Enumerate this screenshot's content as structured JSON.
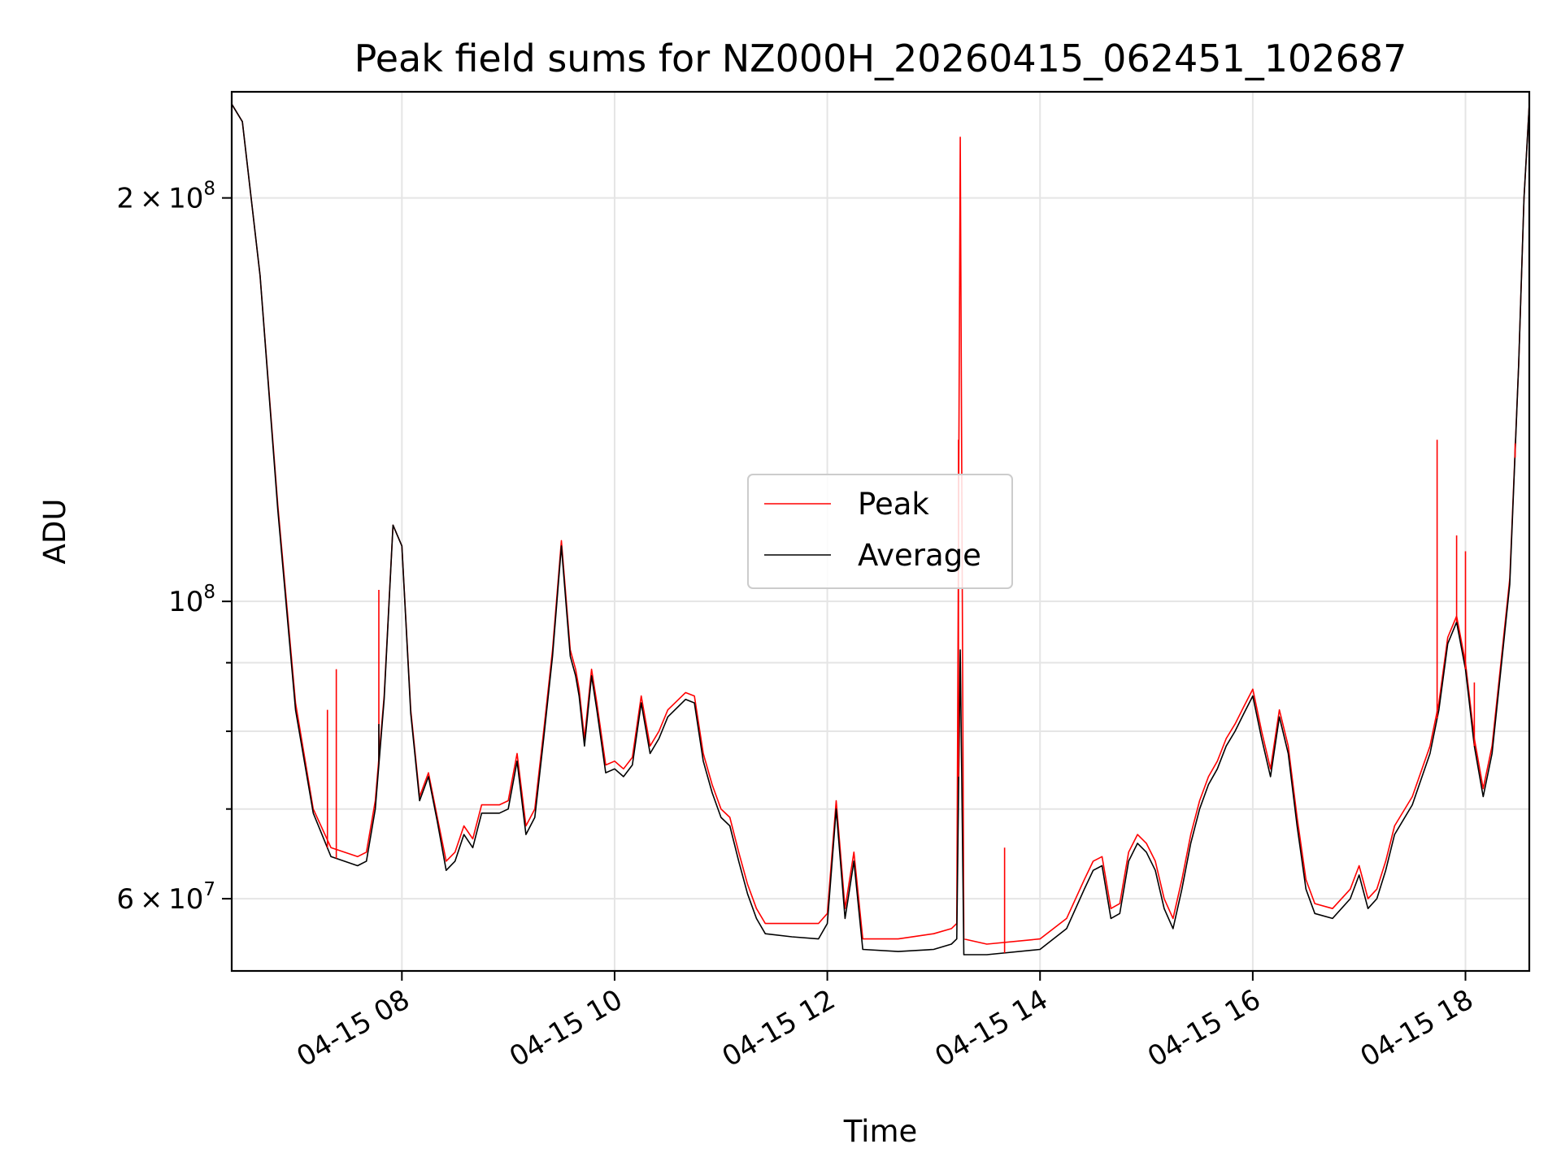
{
  "chart_data": {
    "type": "line",
    "title": "Peak field sums for NZ000H_20260415_062451_102687",
    "xlabel": "Time",
    "ylabel": "ADU",
    "y_scale": "log",
    "x_range": [
      "04-15 06:24",
      "04-15 18:36"
    ],
    "ylim": [
      53000000,
      240000000
    ],
    "grid": true,
    "legend_position": "center",
    "x_ticks": [
      {
        "time": "08:00",
        "label": "04-15 08"
      },
      {
        "time": "10:00",
        "label": "04-15 10"
      },
      {
        "time": "12:00",
        "label": "04-15 12"
      },
      {
        "time": "14:00",
        "label": "04-15 14"
      },
      {
        "time": "16:00",
        "label": "04-15 16"
      },
      {
        "time": "18:00",
        "label": "04-15 18"
      }
    ],
    "y_major_ticks": [
      {
        "value": 60000000,
        "mant": "6",
        "exp": "7"
      },
      {
        "value": 100000000,
        "mant": "",
        "exp": "8"
      },
      {
        "value": 200000000,
        "mant": "2",
        "exp": "8"
      }
    ],
    "y_minor_ticks": [
      70000000,
      80000000,
      90000000
    ],
    "baseline_series": "Average",
    "series": [
      {
        "name": "Peak",
        "color": "#ff0000",
        "points": [
          [
            "06:24",
            235000000.0
          ],
          [
            "06:30",
            228000000.0
          ],
          [
            "06:40",
            175000000.0
          ],
          [
            "06:50",
            118000000.0
          ],
          [
            "07:00",
            84000000.0
          ],
          [
            "07:10",
            70000000.0
          ],
          [
            "07:20",
            65500000.0
          ],
          [
            "07:35",
            64500000.0
          ],
          [
            "07:40",
            65000000.0
          ],
          [
            "07:45",
            71000000.0
          ],
          [
            "07:50",
            85000000.0
          ],
          [
            "07:55",
            114000000.0
          ],
          [
            "08:00",
            110000000.0
          ],
          [
            "08:05",
            83000000.0
          ],
          [
            "08:10",
            71500000.0
          ],
          [
            "08:15",
            74500000.0
          ],
          [
            "08:20",
            69000000.0
          ],
          [
            "08:25",
            64000000.0
          ],
          [
            "08:30",
            65000000.0
          ],
          [
            "08:35",
            68000000.0
          ],
          [
            "08:40",
            66500000.0
          ],
          [
            "08:45",
            70500000.0
          ],
          [
            "08:55",
            70500000.0
          ],
          [
            "09:00",
            71000000.0
          ],
          [
            "09:05",
            77000000.0
          ],
          [
            "09:10",
            68000000.0
          ],
          [
            "09:15",
            70000000.0
          ],
          [
            "09:20",
            80000000.0
          ],
          [
            "09:25",
            92000000.0
          ],
          [
            "09:30",
            111000000.0
          ],
          [
            "09:35",
            92000000.0
          ],
          [
            "09:38",
            89000000.0
          ],
          [
            "09:40",
            86000000.0
          ],
          [
            "09:43",
            79000000.0
          ],
          [
            "09:47",
            89000000.0
          ],
          [
            "09:50",
            84000000.0
          ],
          [
            "09:55",
            75500000.0
          ],
          [
            "10:00",
            76000000.0
          ],
          [
            "10:05",
            75000000.0
          ],
          [
            "10:10",
            76500000.0
          ],
          [
            "10:15",
            85000000.0
          ],
          [
            "10:20",
            78000000.0
          ],
          [
            "10:25",
            80000000.0
          ],
          [
            "10:30",
            83000000.0
          ],
          [
            "10:40",
            85500000.0
          ],
          [
            "10:45",
            85000000.0
          ],
          [
            "10:50",
            77000000.0
          ],
          [
            "10:55",
            73000000.0
          ],
          [
            "11:00",
            70000000.0
          ],
          [
            "11:05",
            69000000.0
          ],
          [
            "11:10",
            65000000.0
          ],
          [
            "11:15",
            61500000.0
          ],
          [
            "11:20",
            59000000.0
          ],
          [
            "11:25",
            57500000.0
          ],
          [
            "11:40",
            57500000.0
          ],
          [
            "11:55",
            57500000.0
          ],
          [
            "12:00",
            58500000.0
          ],
          [
            "12:05",
            71000000.0
          ],
          [
            "12:10",
            59000000.0
          ],
          [
            "12:15",
            65000000.0
          ],
          [
            "12:20",
            56000000.0
          ],
          [
            "12:40",
            56000000.0
          ],
          [
            "13:00",
            56500000.0
          ],
          [
            "13:10",
            57000000.0
          ],
          [
            "13:13",
            57500000.0
          ],
          [
            "13:15",
            222000000.0
          ],
          [
            "13:17",
            56000000.0
          ],
          [
            "13:30",
            55500000.0
          ],
          [
            "14:00",
            56000000.0
          ],
          [
            "14:15",
            58000000.0
          ],
          [
            "14:25",
            62000000.0
          ],
          [
            "14:30",
            64000000.0
          ],
          [
            "14:35",
            64500000.0
          ],
          [
            "14:40",
            59000000.0
          ],
          [
            "14:45",
            59500000.0
          ],
          [
            "14:50",
            65000000.0
          ],
          [
            "14:55",
            67000000.0
          ],
          [
            "15:00",
            66000000.0
          ],
          [
            "15:05",
            64000000.0
          ],
          [
            "15:10",
            60000000.0
          ],
          [
            "15:15",
            58000000.0
          ],
          [
            "15:20",
            62000000.0
          ],
          [
            "15:25",
            67000000.0
          ],
          [
            "15:30",
            71000000.0
          ],
          [
            "15:35",
            74000000.0
          ],
          [
            "15:40",
            76000000.0
          ],
          [
            "15:45",
            79000000.0
          ],
          [
            "15:50",
            81000000.0
          ],
          [
            "15:55",
            83500000.0
          ],
          [
            "16:00",
            86000000.0
          ],
          [
            "16:05",
            80000000.0
          ],
          [
            "16:10",
            75000000.0
          ],
          [
            "16:15",
            83000000.0
          ],
          [
            "16:20",
            78000000.0
          ],
          [
            "16:25",
            69000000.0
          ],
          [
            "16:30",
            62000000.0
          ],
          [
            "16:35",
            59500000.0
          ],
          [
            "16:45",
            59000000.0
          ],
          [
            "16:55",
            61000000.0
          ],
          [
            "17:00",
            63500000.0
          ],
          [
            "17:05",
            60000000.0
          ],
          [
            "17:10",
            61000000.0
          ],
          [
            "17:15",
            64000000.0
          ],
          [
            "17:20",
            68000000.0
          ],
          [
            "17:30",
            71500000.0
          ],
          [
            "17:40",
            78000000.0
          ],
          [
            "17:45",
            84000000.0
          ],
          [
            "17:50",
            94000000.0
          ],
          [
            "17:55",
            97500000.0
          ],
          [
            "18:00",
            90000000.0
          ],
          [
            "18:05",
            79000000.0
          ],
          [
            "18:10",
            72500000.0
          ],
          [
            "18:15",
            78000000.0
          ],
          [
            "18:20",
            90000000.0
          ],
          [
            "18:25",
            104000000.0
          ],
          [
            "18:30",
            150000000.0
          ],
          [
            "18:33",
            200000000.0
          ],
          [
            "18:36",
            235000000.0
          ]
        ]
      },
      {
        "name": "Average",
        "color": "#000000",
        "points": [
          [
            "06:24",
            235000000.0
          ],
          [
            "06:30",
            228000000.0
          ],
          [
            "06:40",
            175000000.0
          ],
          [
            "06:50",
            117000000.0
          ],
          [
            "07:00",
            83000000.0
          ],
          [
            "07:10",
            69500000.0
          ],
          [
            "07:20",
            64500000.0
          ],
          [
            "07:35",
            63500000.0
          ],
          [
            "07:40",
            64000000.0
          ],
          [
            "07:45",
            70000000.0
          ],
          [
            "07:50",
            84500000.0
          ],
          [
            "07:55",
            114000000.0
          ],
          [
            "08:00",
            110000000.0
          ],
          [
            "08:05",
            82500000.0
          ],
          [
            "08:10",
            71000000.0
          ],
          [
            "08:15",
            74000000.0
          ],
          [
            "08:20",
            68500000.0
          ],
          [
            "08:25",
            63000000.0
          ],
          [
            "08:30",
            64000000.0
          ],
          [
            "08:35",
            67000000.0
          ],
          [
            "08:40",
            65500000.0
          ],
          [
            "08:45",
            69500000.0
          ],
          [
            "08:55",
            69500000.0
          ],
          [
            "09:00",
            70000000.0
          ],
          [
            "09:05",
            76000000.0
          ],
          [
            "09:10",
            67000000.0
          ],
          [
            "09:15",
            69000000.0
          ],
          [
            "09:20",
            79000000.0
          ],
          [
            "09:25",
            91000000.0
          ],
          [
            "09:30",
            110000000.0
          ],
          [
            "09:35",
            91000000.0
          ],
          [
            "09:38",
            88000000.0
          ],
          [
            "09:40",
            85000000.0
          ],
          [
            "09:43",
            78000000.0
          ],
          [
            "09:47",
            88000000.0
          ],
          [
            "09:50",
            83000000.0
          ],
          [
            "09:55",
            74500000.0
          ],
          [
            "10:00",
            75000000.0
          ],
          [
            "10:05",
            74000000.0
          ],
          [
            "10:10",
            75500000.0
          ],
          [
            "10:15",
            84000000.0
          ],
          [
            "10:20",
            77000000.0
          ],
          [
            "10:25",
            79000000.0
          ],
          [
            "10:30",
            82000000.0
          ],
          [
            "10:40",
            84500000.0
          ],
          [
            "10:45",
            84000000.0
          ],
          [
            "10:50",
            76000000.0
          ],
          [
            "10:55",
            72000000.0
          ],
          [
            "11:00",
            69000000.0
          ],
          [
            "11:05",
            68000000.0
          ],
          [
            "11:10",
            64000000.0
          ],
          [
            "11:15",
            60500000.0
          ],
          [
            "11:20",
            58000000.0
          ],
          [
            "11:25",
            56500000.0
          ],
          [
            "11:40",
            56200000.0
          ],
          [
            "11:55",
            56000000.0
          ],
          [
            "12:00",
            57500000.0
          ],
          [
            "12:05",
            70000000.0
          ],
          [
            "12:10",
            58000000.0
          ],
          [
            "12:15",
            64000000.0
          ],
          [
            "12:20",
            55000000.0
          ],
          [
            "12:40",
            54800000.0
          ],
          [
            "13:00",
            55000000.0
          ],
          [
            "13:10",
            55500000.0
          ],
          [
            "13:13",
            56000000.0
          ],
          [
            "13:15",
            92000000.0
          ],
          [
            "13:17",
            54500000.0
          ],
          [
            "13:30",
            54500000.0
          ],
          [
            "14:00",
            55000000.0
          ],
          [
            "14:15",
            57000000.0
          ],
          [
            "14:25",
            61000000.0
          ],
          [
            "14:30",
            63000000.0
          ],
          [
            "14:35",
            63500000.0
          ],
          [
            "14:40",
            58000000.0
          ],
          [
            "14:45",
            58500000.0
          ],
          [
            "14:50",
            64000000.0
          ],
          [
            "14:55",
            66000000.0
          ],
          [
            "15:00",
            65000000.0
          ],
          [
            "15:05",
            63000000.0
          ],
          [
            "15:10",
            59000000.0
          ],
          [
            "15:15",
            57000000.0
          ],
          [
            "15:20",
            61000000.0
          ],
          [
            "15:25",
            66000000.0
          ],
          [
            "15:30",
            70000000.0
          ],
          [
            "15:35",
            73000000.0
          ],
          [
            "15:40",
            75000000.0
          ],
          [
            "15:45",
            78000000.0
          ],
          [
            "15:50",
            80000000.0
          ],
          [
            "15:55",
            82500000.0
          ],
          [
            "16:00",
            85000000.0
          ],
          [
            "16:05",
            79000000.0
          ],
          [
            "16:10",
            74000000.0
          ],
          [
            "16:15",
            82000000.0
          ],
          [
            "16:20",
            77000000.0
          ],
          [
            "16:25",
            68000000.0
          ],
          [
            "16:30",
            61000000.0
          ],
          [
            "16:35",
            58500000.0
          ],
          [
            "16:45",
            58000000.0
          ],
          [
            "16:55",
            60000000.0
          ],
          [
            "17:00",
            62500000.0
          ],
          [
            "17:05",
            59000000.0
          ],
          [
            "17:10",
            60000000.0
          ],
          [
            "17:15",
            63000000.0
          ],
          [
            "17:20",
            67000000.0
          ],
          [
            "17:30",
            70500000.0
          ],
          [
            "17:40",
            77000000.0
          ],
          [
            "17:45",
            83000000.0
          ],
          [
            "17:50",
            93000000.0
          ],
          [
            "17:55",
            96500000.0
          ],
          [
            "18:00",
            89000000.0
          ],
          [
            "18:05",
            78000000.0
          ],
          [
            "18:10",
            71500000.0
          ],
          [
            "18:15",
            77000000.0
          ],
          [
            "18:20",
            89000000.0
          ],
          [
            "18:25",
            103000000.0
          ],
          [
            "18:30",
            150000000.0
          ],
          [
            "18:33",
            200000000.0
          ],
          [
            "18:36",
            235000000.0
          ]
        ]
      }
    ],
    "spikes": [
      {
        "series": "Peak",
        "time": "07:18",
        "value": 83000000.0
      },
      {
        "series": "Peak",
        "time": "07:23",
        "value": 89000000.0
      },
      {
        "series": "Peak",
        "time": "07:47",
        "value": 102000000.0
      },
      {
        "series": "Average",
        "time": "07:47",
        "value": 81000000.0
      },
      {
        "series": "Peak",
        "time": "13:14",
        "value": 132000000.0
      },
      {
        "series": "Average",
        "time": "13:14",
        "value": 74000000.0
      },
      {
        "series": "Peak",
        "time": "13:40",
        "value": 65500000.0
      },
      {
        "series": "Peak",
        "time": "17:44",
        "value": 132000000.0
      },
      {
        "series": "Peak",
        "time": "17:55",
        "value": 112000000.0
      },
      {
        "series": "Peak",
        "time": "18:00",
        "value": 109000000.0
      },
      {
        "series": "Peak",
        "time": "18:05",
        "value": 87000000.0
      },
      {
        "series": "Peak",
        "time": "18:28",
        "value": 128000000.0
      }
    ]
  }
}
